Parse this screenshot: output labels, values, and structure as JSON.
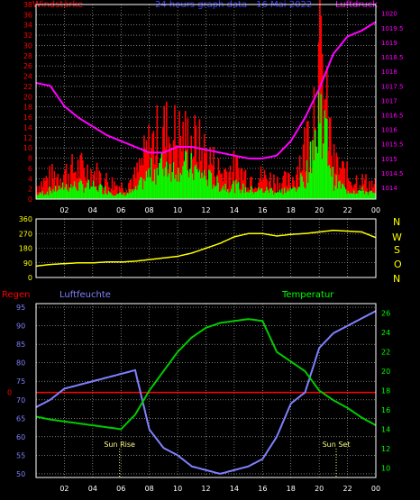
{
  "header": {
    "left_title": "Windstärke",
    "center_title": "24 hours graph data - 16 Mai 2022",
    "right_title": "Luftdruck"
  },
  "compass": [
    "N",
    "W",
    "S",
    "O",
    "N"
  ],
  "lower_titles": {
    "rain": "Regen",
    "humidity": "Luftfeuchte",
    "temperature": "Temperatur"
  },
  "sun": {
    "rise": "Sun Rise",
    "set": "Sun Set"
  },
  "colors": {
    "wind_gust": "#ff0000",
    "wind_avg": "#00ff00",
    "pressure": "#ff00ff",
    "direction": "#ffff00",
    "humidity": "#8080ff",
    "temperature": "#00cc00",
    "rain": "#ff0000",
    "grid": "#c0c0c0",
    "axis_left": "#ff0000",
    "axis_right": "#ff00ff",
    "humidity_axis": "#8080ff",
    "temperature_axis": "#00ff00"
  },
  "chart_data": [
    {
      "type": "bar",
      "title": "24 hours graph data - 16 Mai 2022",
      "ylabel": "Windstärke",
      "y2label": "Luftdruck",
      "x_ticks": [
        "02",
        "04",
        "06",
        "08",
        "10",
        "12",
        "14",
        "16",
        "18",
        "20",
        "22",
        "00"
      ],
      "ylim": [
        0,
        38
      ],
      "y_ticks": [
        0,
        2,
        4,
        6,
        8,
        10,
        12,
        14,
        16,
        18,
        20,
        22,
        24,
        26,
        28,
        30,
        32,
        34,
        36,
        38
      ],
      "y2lim": [
        1013.6,
        1020.3
      ],
      "y2_ticks": [
        "1014",
        "1014.5",
        "1015",
        "1015.5",
        "1016",
        "1016.5",
        "1017",
        "1017.5",
        "1018",
        "1018.5",
        "1019",
        "1019.5",
        "1020"
      ],
      "series": [
        {
          "name": "gust",
          "hours": [
            0,
            1,
            2,
            3,
            4,
            5,
            6,
            7,
            8,
            9,
            10,
            11,
            12,
            13,
            14,
            15,
            16,
            17,
            18,
            19,
            20,
            21,
            22,
            23,
            24
          ],
          "values": [
            3,
            5,
            6,
            7,
            6,
            4,
            3,
            5,
            12,
            15,
            14,
            13,
            10,
            6,
            7,
            5,
            5,
            4,
            4,
            12,
            30,
            8,
            5,
            4,
            3
          ]
        },
        {
          "name": "average",
          "hours": [
            0,
            1,
            2,
            3,
            4,
            5,
            6,
            7,
            8,
            9,
            10,
            11,
            12,
            13,
            14,
            15,
            16,
            17,
            18,
            19,
            20,
            21,
            22,
            23,
            24
          ],
          "values": [
            1,
            2,
            3,
            3,
            3,
            2,
            1,
            2,
            6,
            8,
            8,
            7,
            5,
            3,
            3,
            2,
            2,
            2,
            2,
            5,
            22,
            4,
            2,
            2,
            1
          ]
        },
        {
          "name": "pressure",
          "hours": [
            0,
            1,
            2,
            3,
            4,
            5,
            6,
            7,
            8,
            9,
            10,
            11,
            12,
            13,
            14,
            15,
            16,
            17,
            18,
            19,
            20,
            21,
            22,
            23,
            24
          ],
          "values": [
            1017.6,
            1017.5,
            1016.8,
            1016.4,
            1016.1,
            1015.8,
            1015.6,
            1015.4,
            1015.2,
            1015.2,
            1015.4,
            1015.4,
            1015.3,
            1015.2,
            1015.1,
            1015.0,
            1015.0,
            1015.1,
            1015.6,
            1016.4,
            1017.4,
            1018.6,
            1019.2,
            1019.4,
            1019.7
          ]
        }
      ]
    },
    {
      "type": "line",
      "ylabel": "",
      "ylim": [
        0,
        360
      ],
      "y_ticks": [
        0,
        90,
        180,
        270,
        360
      ],
      "x_ticks": [
        "02",
        "04",
        "06",
        "08",
        "10",
        "12",
        "14",
        "16",
        "18",
        "20",
        "22",
        "00"
      ],
      "series": [
        {
          "name": "direction",
          "hours": [
            0,
            1,
            2,
            3,
            4,
            5,
            6,
            7,
            8,
            9,
            10,
            11,
            12,
            13,
            14,
            15,
            16,
            17,
            18,
            19,
            20,
            21,
            22,
            23,
            24
          ],
          "values": [
            70,
            80,
            85,
            90,
            90,
            95,
            95,
            100,
            110,
            120,
            130,
            150,
            180,
            210,
            250,
            270,
            270,
            255,
            265,
            270,
            280,
            290,
            285,
            280,
            245
          ]
        }
      ]
    },
    {
      "type": "line",
      "ylabel": "Luftfeuchte",
      "y2label": "Temperatur",
      "rain_label": "Regen",
      "ylim": [
        49,
        96
      ],
      "y_ticks": [
        50,
        55,
        60,
        65,
        70,
        75,
        80,
        85,
        90,
        95
      ],
      "y2lim": [
        9,
        27
      ],
      "y2_ticks": [
        10,
        12,
        14,
        16,
        18,
        20,
        22,
        24,
        26
      ],
      "rain_value": 0,
      "x_ticks": [
        "02",
        "04",
        "06",
        "08",
        "10",
        "12",
        "14",
        "16",
        "18",
        "20",
        "22",
        "00"
      ],
      "sun_rise_hour": 5.9,
      "sun_set_hour": 21.2,
      "series": [
        {
          "name": "humidity",
          "hours": [
            0,
            1,
            2,
            3,
            4,
            5,
            6,
            7,
            8,
            9,
            10,
            11,
            12,
            13,
            14,
            15,
            16,
            17,
            18,
            19,
            20,
            21,
            22,
            23,
            24
          ],
          "values": [
            68,
            70,
            73,
            74,
            75,
            76,
            77,
            78,
            62,
            57,
            55,
            52,
            51,
            50,
            51,
            52,
            54,
            60,
            69,
            72,
            84,
            88,
            90,
            92,
            94
          ]
        },
        {
          "name": "temperature",
          "hours": [
            0,
            1,
            2,
            3,
            4,
            5,
            6,
            7,
            8,
            9,
            10,
            11,
            12,
            13,
            14,
            15,
            16,
            17,
            18,
            19,
            20,
            21,
            22,
            23,
            24
          ],
          "values": [
            15.3,
            15.0,
            14.8,
            14.6,
            14.4,
            14.2,
            14.0,
            15.5,
            18.0,
            20.0,
            22.0,
            23.5,
            24.5,
            25.0,
            25.2,
            25.4,
            25.2,
            22.0,
            21.0,
            20.0,
            18.0,
            17.0,
            16.2,
            15.2,
            14.4
          ]
        }
      ]
    }
  ]
}
